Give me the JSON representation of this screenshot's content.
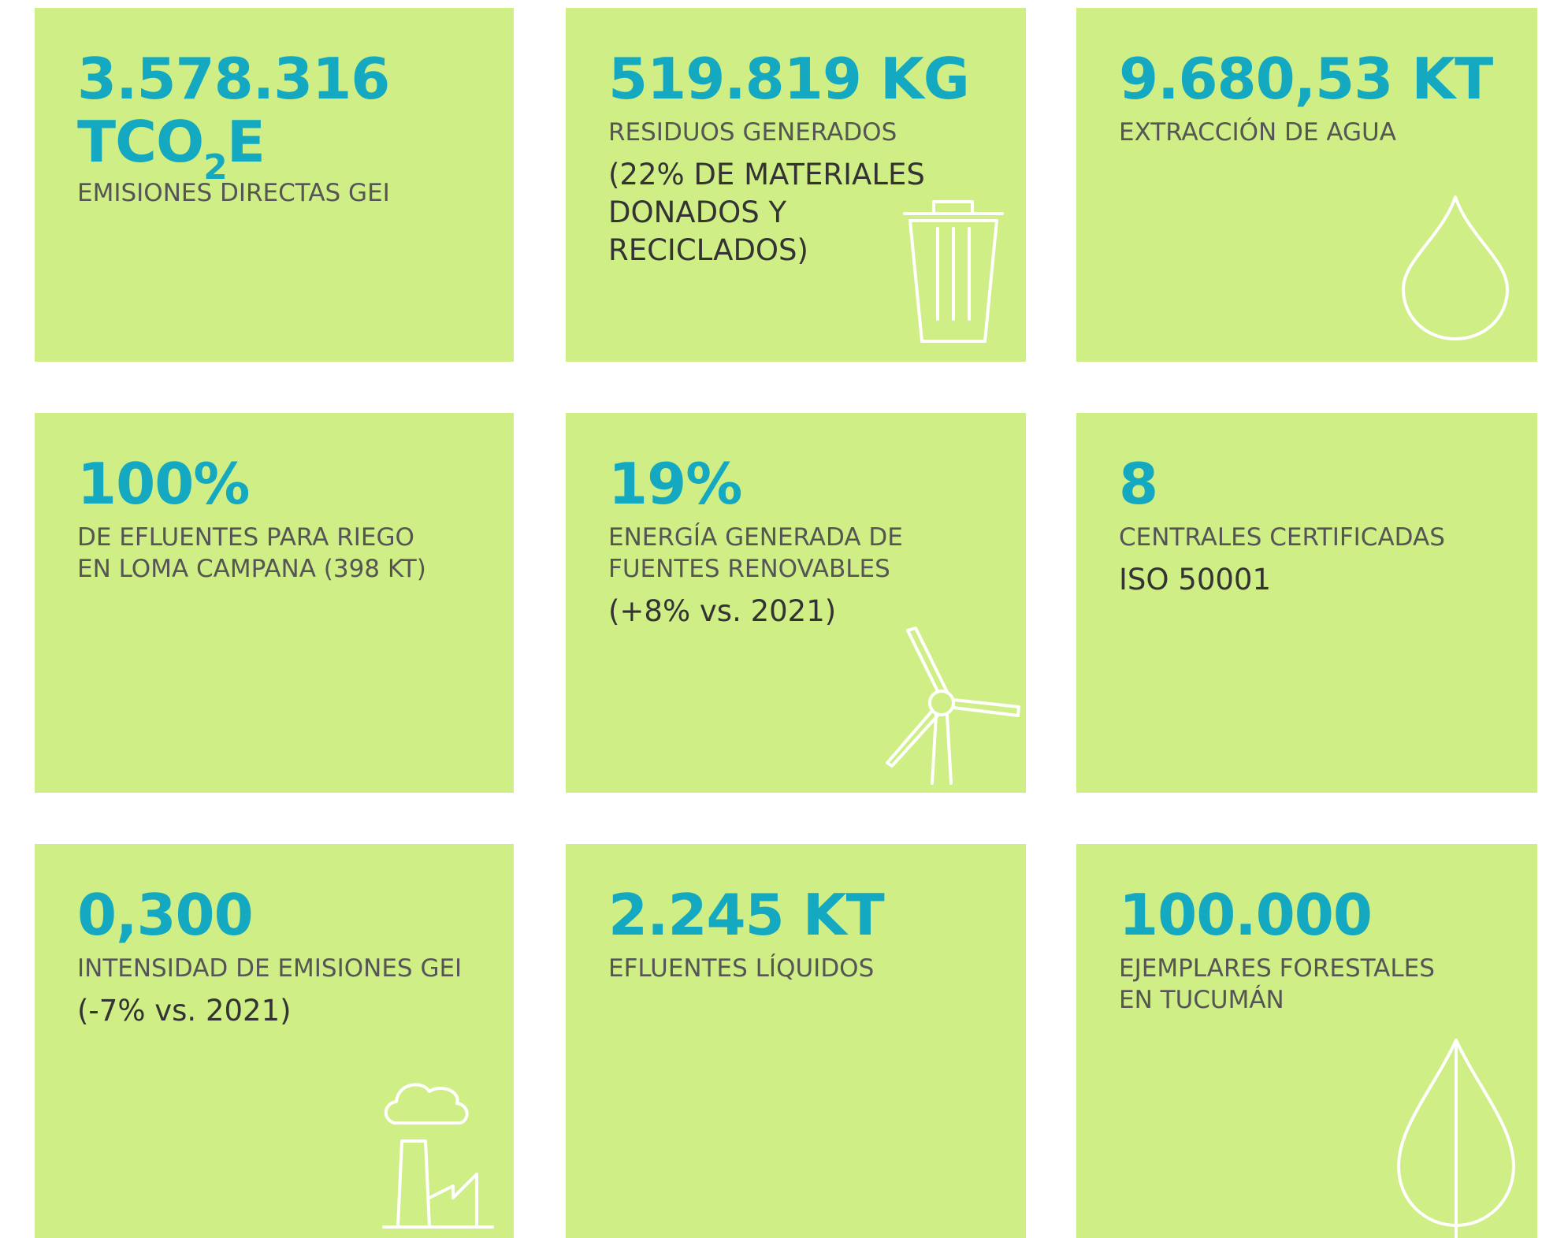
{
  "tiles": [
    {
      "headline": [
        "3.578.316"
      ],
      "unit": {
        "base": "TCO",
        "sub": "2",
        "end": "E"
      },
      "label": [
        "EMISIONES DIRECTAS GEI"
      ],
      "note": []
    },
    {
      "headline": [
        "519.819 KG"
      ],
      "label": [
        "RESIDUOS GENERADOS"
      ],
      "note": [
        "(22% DE MATERIALES",
        "DONADOS Y",
        "RECICLADOS)"
      ]
    },
    {
      "headline": [
        "9.680,53 KT"
      ],
      "label": [
        "EXTRACCIÓN DE AGUA"
      ],
      "note": []
    },
    {
      "headline": [
        "100%"
      ],
      "label": [
        "DE EFLUENTES PARA RIEGO",
        "EN LOMA CAMPANA (398 KT)"
      ],
      "note": []
    },
    {
      "headline": [
        "19%"
      ],
      "label": [
        "ENERGÍA GENERADA DE",
        "FUENTES RENOVABLES"
      ],
      "note": [
        "(+8% vs. 2021)"
      ]
    },
    {
      "headline": [
        "8"
      ],
      "label": [
        "CENTRALES CERTIFICADAS"
      ],
      "note": [
        "ISO 50001"
      ]
    },
    {
      "headline": [
        "0,300"
      ],
      "label": [
        "INTENSIDAD DE EMISIONES GEI"
      ],
      "note": [
        "(-7% vs. 2021)"
      ]
    },
    {
      "headline": [
        "2.245 KT"
      ],
      "label": [
        "EFLUENTES LÍQUIDOS"
      ],
      "note": []
    },
    {
      "headline": [
        "100.000"
      ],
      "label": [
        "EJEMPLARES FORESTALES",
        "EN TUCUMÁN"
      ],
      "note": []
    }
  ]
}
